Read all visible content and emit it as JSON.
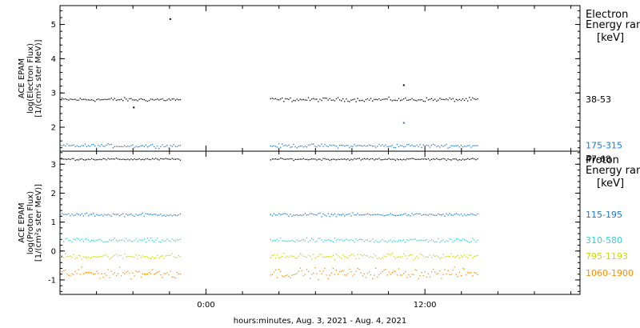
{
  "xlabel": "hours:minutes, Aug.  3, 2021 - Aug.  4, 2021",
  "x_ticks": [
    "0:00",
    "12:00"
  ],
  "gap": [
    "-1.4",
    "3.5"
  ],
  "chart_data": [
    {
      "type": "scatter",
      "panel": "electron",
      "xlabel": "hours:minutes, Aug.  3, 2021 - Aug.  4, 2021",
      "ylabel_lines": [
        "ACE EPAM",
        "log(Electron Flux)",
        "[1/(cm²s ster MeV)]"
      ],
      "ylim": [
        1.3,
        5.55
      ],
      "xlim": [
        -8.0,
        20.5
      ],
      "x_unit": "hours relative to 0:00 Aug. 4",
      "data_x_range": [
        -8.0,
        14.9
      ],
      "y_ticks": [
        "2",
        "3",
        "4",
        "5"
      ],
      "y_tick_values": [
        2,
        3,
        4,
        5
      ],
      "legend_title": [
        "Electron",
        "Energy ran",
        "[keV]"
      ],
      "series": [
        {
          "name": "38-53",
          "color": "#000000",
          "mean": 2.82,
          "spread": 0.05,
          "outliers": [
            {
              "x": -2.0,
              "y": 5.18
            },
            {
              "x": 10.8,
              "y": 3.25
            },
            {
              "x": -4.0,
              "y": 2.6
            }
          ]
        },
        {
          "name": "175-315",
          "color": "#1f77d0",
          "mean": 1.47,
          "spread": 0.05,
          "outliers": [
            {
              "x": 10.8,
              "y": 2.15
            }
          ]
        }
      ]
    },
    {
      "type": "scatter",
      "panel": "proton",
      "xlabel": "hours:minutes, Aug.  3, 2021 - Aug.  4, 2021",
      "ylabel_lines": [
        "ACE EPAM",
        "log(Proton Flux)",
        "[1/(cm²s ster MeV)]"
      ],
      "ylim": [
        -1.5,
        3.45
      ],
      "xlim": [
        -8.0,
        20.5
      ],
      "x_unit": "hours relative to 0:00 Aug. 4",
      "data_x_range": [
        -8.0,
        14.9
      ],
      "y_ticks": [
        "-1",
        "0",
        "1",
        "2",
        "3"
      ],
      "y_tick_values": [
        -1,
        0,
        1,
        2,
        3
      ],
      "legend_title": [
        "Proton",
        "Energy ran",
        "[keV]"
      ],
      "series": [
        {
          "name": "47-68",
          "color": "#000000",
          "mean": 3.19,
          "spread": 0.03,
          "outliers": []
        },
        {
          "name": "115-195",
          "color": "#1f77d0",
          "mean": 1.27,
          "spread": 0.05,
          "outliers": []
        },
        {
          "name": "310-580",
          "color": "#35d0d0",
          "mean": 0.38,
          "spread": 0.07,
          "outliers": []
        },
        {
          "name": "795-1193",
          "color": "#c8d800",
          "mean": -0.17,
          "spread": 0.09,
          "outliers": []
        },
        {
          "name": "1060-1900",
          "color": "#ff8c00",
          "mean": -0.75,
          "spread": 0.16,
          "outliers": []
        }
      ]
    }
  ]
}
